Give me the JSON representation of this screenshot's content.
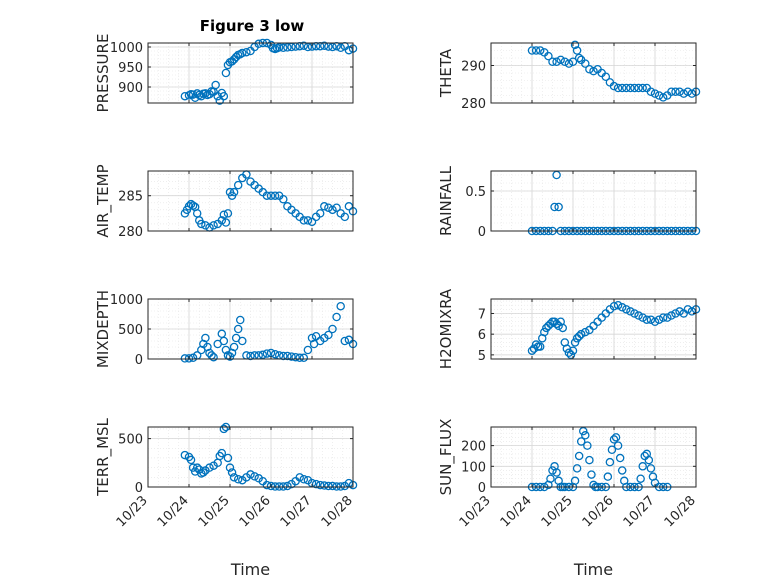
{
  "figure": {
    "title": "Figure 3 low",
    "marker_color": "#0072BD",
    "grid": true,
    "minor_grid": true
  },
  "chart_data": [
    {
      "type": "scatter",
      "ylabel": "PRESSURE",
      "xlabel": "",
      "title": "Figure 3 low",
      "x_tick_labels": [
        "10/23",
        "10/24",
        "10/25",
        "10/26",
        "10/27",
        "10/28"
      ],
      "xlim": [
        0,
        5
      ],
      "ylim": [
        860,
        1010
      ],
      "yticks": [
        900,
        950,
        1000
      ],
      "x": [
        0.9,
        1.0,
        1.05,
        1.1,
        1.15,
        1.2,
        1.25,
        1.3,
        1.35,
        1.4,
        1.45,
        1.5,
        1.55,
        1.6,
        1.65,
        1.7,
        1.75,
        1.8,
        1.85,
        1.9,
        1.95,
        2.0,
        2.05,
        2.1,
        2.15,
        2.2,
        2.25,
        2.3,
        2.4,
        2.5,
        2.6,
        2.7,
        2.8,
        2.9,
        3.0,
        3.05,
        3.1,
        3.15,
        3.2,
        3.3,
        3.4,
        3.5,
        3.6,
        3.7,
        3.8,
        3.9,
        4.0,
        4.1,
        4.2,
        4.3,
        4.4,
        4.5,
        4.6,
        4.7,
        4.8,
        4.9,
        5.0
      ],
      "y": [
        877,
        879,
        882,
        881,
        873,
        884,
        880,
        877,
        883,
        884,
        880,
        882,
        889,
        888,
        905,
        877,
        866,
        885,
        877,
        935,
        955,
        962,
        964,
        969,
        975,
        980,
        982,
        985,
        987,
        990,
        1000,
        1008,
        1010,
        1010,
        1005,
        997,
        995,
        997,
        999,
        998,
        999,
        1000,
        1001,
        1002,
        1003,
        1000,
        1001,
        1002,
        1002,
        1003,
        1001,
        1000,
        1002,
        998,
        1002,
        992,
        996
      ]
    },
    {
      "type": "scatter",
      "ylabel": "THETA",
      "xlabel": "",
      "title": "",
      "x_tick_labels": [
        "10/23",
        "10/24",
        "10/25",
        "10/26",
        "10/27",
        "10/28"
      ],
      "xlim": [
        0,
        5
      ],
      "ylim": [
        280,
        296
      ],
      "yticks": [
        280,
        290
      ],
      "x": [
        1.0,
        1.1,
        1.2,
        1.3,
        1.4,
        1.5,
        1.6,
        1.7,
        1.8,
        1.9,
        2.0,
        2.05,
        2.1,
        2.15,
        2.2,
        2.3,
        2.4,
        2.5,
        2.6,
        2.7,
        2.8,
        2.9,
        3.0,
        3.1,
        3.2,
        3.3,
        3.4,
        3.5,
        3.6,
        3.7,
        3.8,
        3.9,
        4.0,
        4.1,
        4.2,
        4.3,
        4.4,
        4.5,
        4.6,
        4.7,
        4.8,
        4.9,
        5.0
      ],
      "y": [
        294,
        294,
        294,
        293.5,
        292.5,
        291,
        291,
        291.5,
        291,
        290.5,
        291,
        295.5,
        294,
        292,
        291.5,
        290.5,
        289,
        288.5,
        289,
        288,
        287,
        285.5,
        284.5,
        284,
        284,
        284,
        284,
        284,
        284,
        284,
        284,
        283,
        282.5,
        282,
        281.5,
        282,
        283,
        283,
        283,
        282.5,
        283,
        282.5,
        283
      ]
    },
    {
      "type": "scatter",
      "ylabel": "AIR_TEMP",
      "xlabel": "",
      "title": "",
      "x_tick_labels": [
        "10/23",
        "10/24",
        "10/25",
        "10/26",
        "10/27",
        "10/28"
      ],
      "xlim": [
        0,
        5
      ],
      "ylim": [
        280,
        288.5
      ],
      "yticks": [
        280,
        285
      ],
      "x": [
        0.9,
        0.95,
        1.0,
        1.05,
        1.1,
        1.15,
        1.2,
        1.25,
        1.3,
        1.4,
        1.5,
        1.6,
        1.7,
        1.8,
        1.85,
        1.9,
        1.95,
        2.0,
        2.05,
        2.1,
        2.2,
        2.3,
        2.4,
        2.5,
        2.6,
        2.7,
        2.8,
        2.9,
        3.0,
        3.1,
        3.2,
        3.3,
        3.4,
        3.5,
        3.6,
        3.7,
        3.8,
        3.9,
        4.0,
        4.1,
        4.2,
        4.3,
        4.4,
        4.5,
        4.6,
        4.7,
        4.8,
        4.9,
        5.0
      ],
      "y": [
        282.5,
        283,
        283.5,
        283.8,
        283.6,
        283.4,
        282.5,
        281.5,
        281,
        280.8,
        280.5,
        280.8,
        281,
        281.5,
        282.3,
        281.2,
        282.5,
        285.5,
        285,
        285.5,
        286.5,
        287.5,
        288,
        287,
        286.5,
        286,
        285.5,
        285,
        285,
        285,
        285,
        284.5,
        283.5,
        283,
        282.5,
        282,
        281.5,
        281.5,
        281.3,
        282,
        282.5,
        283.5,
        283.3,
        283,
        283.3,
        282.5,
        282,
        283.5,
        282.8
      ]
    },
    {
      "type": "scatter",
      "ylabel": "RAINFALL",
      "xlabel": "",
      "title": "",
      "x_tick_labels": [
        "10/23",
        "10/24",
        "10/25",
        "10/26",
        "10/27",
        "10/28"
      ],
      "xlim": [
        0,
        5
      ],
      "ylim": [
        0,
        0.75
      ],
      "yticks": [
        0,
        0.5
      ],
      "x": [
        1.0,
        1.1,
        1.2,
        1.3,
        1.4,
        1.5,
        1.55,
        1.6,
        1.65,
        1.7,
        1.8,
        1.9,
        2.0,
        2.1,
        2.2,
        2.3,
        2.4,
        2.5,
        2.6,
        2.7,
        2.8,
        2.9,
        3.0,
        3.1,
        3.2,
        3.3,
        3.4,
        3.5,
        3.6,
        3.7,
        3.8,
        3.9,
        4.0,
        4.1,
        4.2,
        4.3,
        4.4,
        4.5,
        4.6,
        4.7,
        4.8,
        4.9,
        5.0
      ],
      "y": [
        0,
        0,
        0,
        0,
        0,
        0,
        0.3,
        0.7,
        0.3,
        0,
        0,
        0,
        0,
        0,
        0,
        0,
        0,
        0,
        0,
        0,
        0,
        0,
        0,
        0,
        0,
        0,
        0,
        0,
        0,
        0,
        0,
        0,
        0,
        0,
        0,
        0,
        0,
        0,
        0,
        0,
        0,
        0,
        0
      ]
    },
    {
      "type": "scatter",
      "ylabel": "MIXDEPTH",
      "xlabel": "",
      "title": "",
      "x_tick_labels": [
        "10/23",
        "10/24",
        "10/25",
        "10/26",
        "10/27",
        "10/28"
      ],
      "xlim": [
        0,
        5
      ],
      "ylim": [
        0,
        1000
      ],
      "yticks": [
        0,
        500,
        1000
      ],
      "x": [
        0.9,
        1.0,
        1.1,
        1.2,
        1.3,
        1.35,
        1.4,
        1.45,
        1.5,
        1.55,
        1.6,
        1.7,
        1.8,
        1.85,
        1.9,
        1.95,
        2.0,
        2.05,
        2.1,
        2.15,
        2.2,
        2.25,
        2.3,
        2.4,
        2.5,
        2.6,
        2.7,
        2.8,
        2.9,
        3.0,
        3.1,
        3.2,
        3.3,
        3.4,
        3.5,
        3.6,
        3.7,
        3.8,
        3.9,
        4.0,
        4.05,
        4.1,
        4.2,
        4.3,
        4.4,
        4.5,
        4.6,
        4.7,
        4.8,
        4.9,
        5.0
      ],
      "y": [
        10,
        10,
        20,
        60,
        150,
        250,
        350,
        200,
        100,
        60,
        30,
        250,
        420,
        300,
        150,
        60,
        40,
        100,
        200,
        350,
        500,
        650,
        300,
        60,
        50,
        60,
        60,
        70,
        90,
        100,
        80,
        60,
        50,
        50,
        40,
        30,
        20,
        20,
        150,
        350,
        250,
        380,
        300,
        350,
        400,
        500,
        700,
        880,
        300,
        320,
        250
      ]
    },
    {
      "type": "scatter",
      "ylabel": "H2OMIXRA",
      "xlabel": "",
      "title": "",
      "x_tick_labels": [
        "10/23",
        "10/24",
        "10/25",
        "10/26",
        "10/27",
        "10/28"
      ],
      "xlim": [
        0,
        5
      ],
      "ylim": [
        4.8,
        7.7
      ],
      "yticks": [
        5,
        6,
        7
      ],
      "x": [
        1.0,
        1.05,
        1.1,
        1.15,
        1.2,
        1.25,
        1.3,
        1.35,
        1.4,
        1.45,
        1.5,
        1.55,
        1.6,
        1.65,
        1.7,
        1.75,
        1.8,
        1.85,
        1.9,
        1.95,
        2.0,
        2.05,
        2.1,
        2.15,
        2.2,
        2.3,
        2.4,
        2.5,
        2.6,
        2.7,
        2.8,
        2.9,
        3.0,
        3.1,
        3.2,
        3.3,
        3.4,
        3.5,
        3.6,
        3.7,
        3.8,
        3.9,
        4.0,
        4.1,
        4.2,
        4.3,
        4.4,
        4.5,
        4.6,
        4.7,
        4.8,
        4.9,
        5.0
      ],
      "y": [
        5.2,
        5.3,
        5.5,
        5.4,
        5.4,
        5.8,
        6.1,
        6.3,
        6.4,
        6.5,
        6.6,
        6.6,
        6.5,
        6.4,
        6.6,
        6.3,
        5.6,
        5.3,
        5.1,
        5.0,
        5.2,
        5.6,
        5.8,
        5.9,
        6.0,
        6.1,
        6.2,
        6.4,
        6.6,
        6.8,
        7.0,
        7.2,
        7.35,
        7.4,
        7.3,
        7.2,
        7.1,
        7.0,
        6.9,
        6.8,
        6.7,
        6.7,
        6.6,
        6.7,
        6.8,
        6.8,
        6.9,
        7.0,
        7.1,
        7.0,
        7.2,
        7.1,
        7.2
      ]
    },
    {
      "type": "scatter",
      "ylabel": "TERR_MSL",
      "xlabel": "Time",
      "title": "",
      "x_tick_labels": [
        "10/23",
        "10/24",
        "10/25",
        "10/26",
        "10/27",
        "10/28"
      ],
      "xlim": [
        0,
        5
      ],
      "ylim": [
        0,
        620
      ],
      "yticks": [
        0,
        500
      ],
      "x": [
        0.9,
        1.0,
        1.05,
        1.1,
        1.15,
        1.2,
        1.25,
        1.3,
        1.35,
        1.4,
        1.5,
        1.6,
        1.7,
        1.75,
        1.8,
        1.85,
        1.9,
        1.95,
        2.0,
        2.05,
        2.1,
        2.2,
        2.3,
        2.4,
        2.5,
        2.6,
        2.7,
        2.8,
        2.9,
        3.0,
        3.1,
        3.2,
        3.3,
        3.4,
        3.5,
        3.6,
        3.7,
        3.8,
        3.9,
        4.0,
        4.1,
        4.2,
        4.3,
        4.4,
        4.5,
        4.6,
        4.7,
        4.8,
        4.9,
        5.0
      ],
      "y": [
        330,
        310,
        280,
        200,
        160,
        200,
        180,
        140,
        150,
        170,
        200,
        220,
        250,
        320,
        350,
        600,
        620,
        300,
        200,
        150,
        100,
        80,
        70,
        100,
        130,
        110,
        90,
        60,
        20,
        10,
        5,
        5,
        5,
        10,
        30,
        60,
        100,
        80,
        70,
        40,
        30,
        20,
        15,
        10,
        10,
        5,
        5,
        10,
        40,
        20
      ]
    },
    {
      "type": "scatter",
      "ylabel": "SUN_FLUX",
      "xlabel": "Time",
      "title": "",
      "x_tick_labels": [
        "10/23",
        "10/24",
        "10/25",
        "10/26",
        "10/27",
        "10/28"
      ],
      "xlim": [
        0,
        5
      ],
      "ylim": [
        0,
        290
      ],
      "yticks": [
        0,
        100,
        200
      ],
      "x": [
        1.0,
        1.1,
        1.2,
        1.3,
        1.4,
        1.45,
        1.5,
        1.55,
        1.6,
        1.65,
        1.7,
        1.75,
        1.8,
        1.9,
        2.0,
        2.05,
        2.1,
        2.15,
        2.2,
        2.25,
        2.3,
        2.35,
        2.4,
        2.45,
        2.5,
        2.55,
        2.6,
        2.7,
        2.8,
        2.85,
        2.9,
        2.95,
        3.0,
        3.05,
        3.1,
        3.15,
        3.2,
        3.25,
        3.3,
        3.4,
        3.5,
        3.6,
        3.65,
        3.7,
        3.75,
        3.8,
        3.85,
        3.9,
        3.95,
        4.0,
        4.1,
        4.2,
        4.3
      ],
      "y": [
        0,
        0,
        0,
        0,
        10,
        40,
        80,
        100,
        70,
        30,
        0,
        0,
        0,
        0,
        0,
        30,
        90,
        150,
        220,
        270,
        250,
        200,
        130,
        60,
        10,
        0,
        0,
        0,
        0,
        50,
        120,
        180,
        230,
        240,
        200,
        140,
        80,
        30,
        0,
        0,
        0,
        0,
        40,
        100,
        150,
        160,
        130,
        90,
        50,
        20,
        0,
        0,
        0
      ]
    }
  ]
}
